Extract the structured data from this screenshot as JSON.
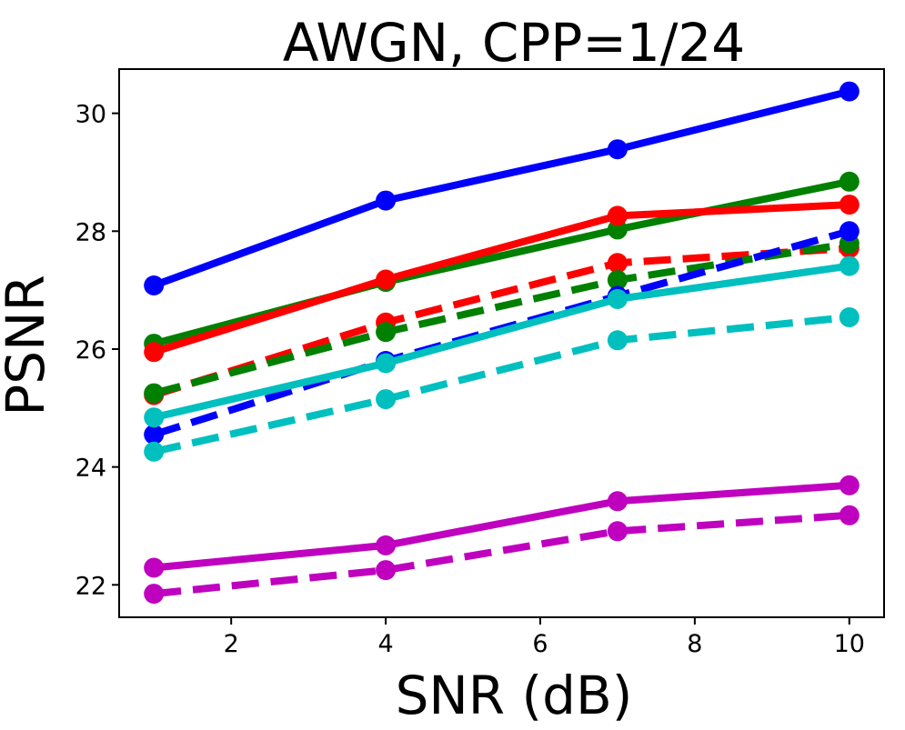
{
  "chart_data": {
    "type": "line",
    "title": "AWGN, CPP=1/24",
    "xlabel": "SNR (dB)",
    "ylabel": "PSNR",
    "xlim": [
      0.55,
      10.45
    ],
    "ylim": [
      21.45,
      30.75
    ],
    "xticks": [
      2,
      4,
      6,
      8,
      10
    ],
    "yticks": [
      22,
      24,
      26,
      28,
      30
    ],
    "grid": false,
    "x": [
      1,
      4,
      7,
      10
    ],
    "series": [
      {
        "name": "blue-solid",
        "color": "#0000ff",
        "dashed": false,
        "values": [
          27.08,
          28.52,
          29.39,
          30.37
        ]
      },
      {
        "name": "green-solid",
        "color": "#008000",
        "dashed": false,
        "values": [
          26.09,
          27.14,
          28.03,
          28.84
        ]
      },
      {
        "name": "red-solid",
        "color": "#ff0000",
        "dashed": false,
        "values": [
          25.95,
          27.18,
          28.26,
          28.45
        ]
      },
      {
        "name": "red-dashed",
        "color": "#ff0000",
        "dashed": true,
        "values": [
          25.22,
          26.45,
          27.46,
          27.71
        ]
      },
      {
        "name": "green-dashed",
        "color": "#008000",
        "dashed": true,
        "values": [
          25.25,
          26.29,
          27.17,
          27.79
        ]
      },
      {
        "name": "blue-dashed",
        "color": "#0000ff",
        "dashed": true,
        "values": [
          24.55,
          25.8,
          26.9,
          28.0
        ]
      },
      {
        "name": "cyan-solid",
        "color": "#00bfbf",
        "dashed": false,
        "values": [
          24.84,
          25.76,
          26.85,
          27.41
        ]
      },
      {
        "name": "cyan-dashed",
        "color": "#00bfbf",
        "dashed": true,
        "values": [
          24.26,
          25.15,
          26.15,
          26.54
        ]
      },
      {
        "name": "magenta-solid",
        "color": "#bf00bf",
        "dashed": false,
        "values": [
          22.29,
          22.67,
          23.42,
          23.69
        ]
      },
      {
        "name": "magenta-dashed",
        "color": "#bf00bf",
        "dashed": true,
        "values": [
          21.85,
          22.25,
          22.91,
          23.18
        ]
      }
    ]
  }
}
